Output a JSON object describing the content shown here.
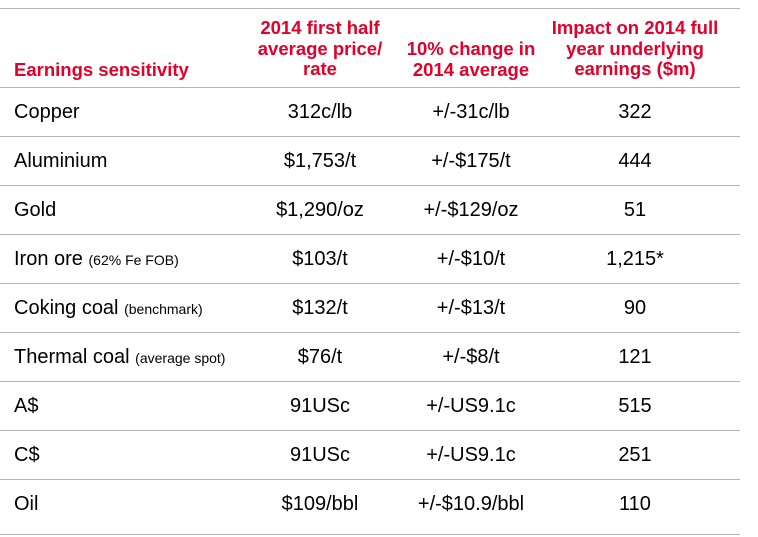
{
  "headers": {
    "col1": "Earnings sensitivity",
    "col2": "2014 first half average price/ rate",
    "col3": "10% change in 2014 average",
    "col4": "Impact on 2014 full year underlying earnings ($m)"
  },
  "rows": [
    {
      "label": "Copper",
      "sub": "",
      "price": "312c/lb",
      "change": "+/-31c/lb",
      "impact": "322"
    },
    {
      "label": "Aluminium",
      "sub": "",
      "price": "$1,753/t",
      "change": "+/-$175/t",
      "impact": "444"
    },
    {
      "label": "Gold",
      "sub": "",
      "price": "$1,290/oz",
      "change": "+/-$129/oz",
      "impact": "51"
    },
    {
      "label": "Iron ore",
      "sub": "(62% Fe FOB)",
      "price": "$103/t",
      "change": "+/-$10/t",
      "impact": "1,215*"
    },
    {
      "label": "Coking coal",
      "sub": "(benchmark)",
      "price": "$132/t",
      "change": "+/-$13/t",
      "impact": "90"
    },
    {
      "label": "Thermal coal",
      "sub": "(average spot)",
      "price": "$76/t",
      "change": "+/-$8/t",
      "impact": "121"
    },
    {
      "label": "A$",
      "sub": "",
      "price": "91USc",
      "change": "+/-US9.1c",
      "impact": "515"
    },
    {
      "label": "C$",
      "sub": "",
      "price": "91USc",
      "change": "+/-US9.1c",
      "impact": "251"
    },
    {
      "label": "Oil",
      "sub": "",
      "price": "$109/bbl",
      "change": "+/-$10.9/bbl",
      "impact": "110"
    }
  ],
  "colors": {
    "header": "#e4002b",
    "rule": "#b4b4b4"
  }
}
